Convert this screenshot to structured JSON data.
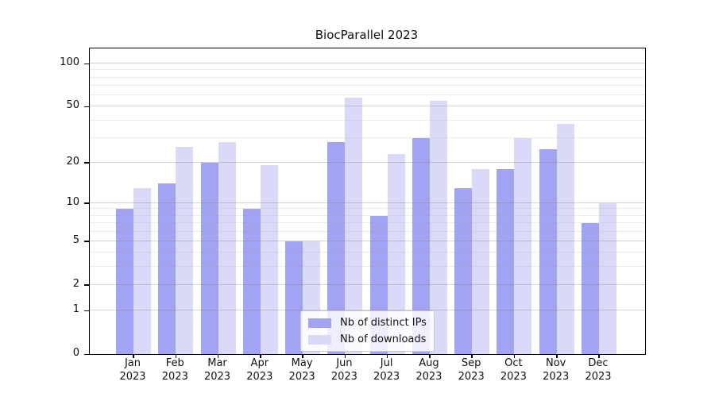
{
  "chart_data": {
    "type": "bar",
    "title": "BiocParallel 2023",
    "categories": [
      {
        "month": "Jan",
        "year": "2023"
      },
      {
        "month": "Feb",
        "year": "2023"
      },
      {
        "month": "Mar",
        "year": "2023"
      },
      {
        "month": "Apr",
        "year": "2023"
      },
      {
        "month": "May",
        "year": "2023"
      },
      {
        "month": "Jun",
        "year": "2023"
      },
      {
        "month": "Jul",
        "year": "2023"
      },
      {
        "month": "Aug",
        "year": "2023"
      },
      {
        "month": "Sep",
        "year": "2023"
      },
      {
        "month": "Oct",
        "year": "2023"
      },
      {
        "month": "Nov",
        "year": "2023"
      },
      {
        "month": "Dec",
        "year": "2023"
      }
    ],
    "series": [
      {
        "name": "Nb of distinct IPs",
        "color": "#a3a3f3",
        "values": [
          9,
          14,
          20,
          9,
          5,
          28,
          8,
          30,
          13,
          18,
          25,
          7
        ]
      },
      {
        "name": "Nb of downloads",
        "color": "#dadaf8",
        "values": [
          13,
          26,
          28,
          19,
          5,
          58,
          23,
          55,
          18,
          30,
          38,
          10
        ]
      }
    ],
    "y_scale": "log1p",
    "y_ticks": [
      0,
      1,
      2,
      5,
      10,
      20,
      50,
      100
    ],
    "y_minor_gridlines": [
      3,
      4,
      6,
      7,
      8,
      9,
      30,
      40,
      60,
      70,
      80,
      90
    ],
    "ylim": [
      0,
      128
    ],
    "grid": true,
    "xlabel": "",
    "ylabel": "",
    "legend_position": "lower-center-inside"
  }
}
